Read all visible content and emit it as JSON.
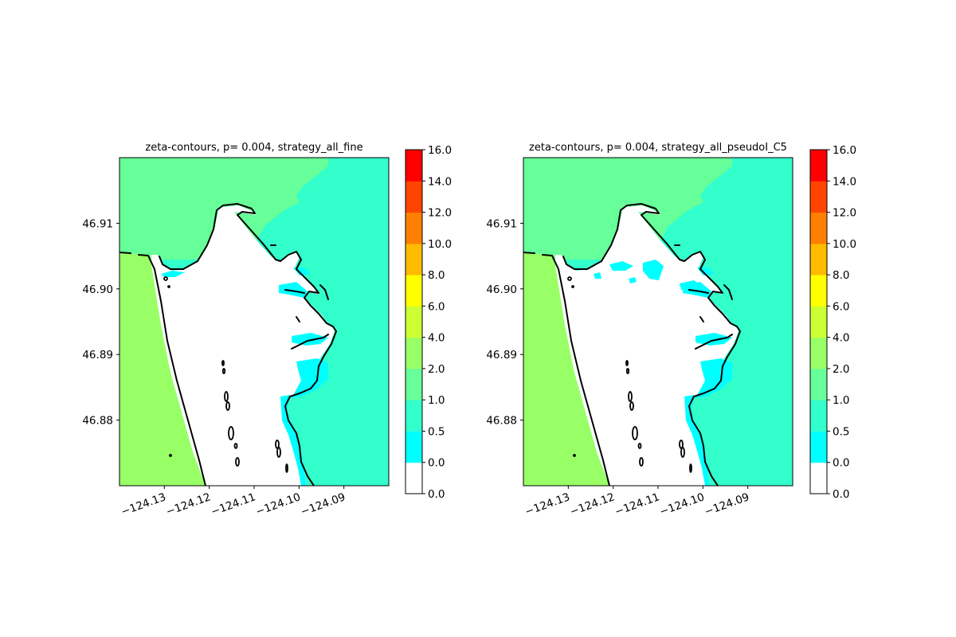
{
  "chart_data": [
    {
      "type": "heatmap",
      "title": "zeta-contours, p= 0.004, strategy_all_fine",
      "xlim": [
        -124.14,
        -124.08
      ],
      "ylim": [
        46.87,
        46.92
      ],
      "x_ticks": [
        -124.13,
        -124.12,
        -124.11,
        -124.1,
        -124.09
      ],
      "x_tick_labels": [
        "−124.13",
        "−124.12",
        "−124.11",
        "−124.10",
        "−124.09"
      ],
      "y_ticks": [
        46.88,
        46.89,
        46.9,
        46.91
      ],
      "y_tick_labels": [
        "46.88",
        "46.89",
        "46.90",
        "46.91"
      ],
      "variant": "fine"
    },
    {
      "type": "heatmap",
      "title": "zeta-contours, p= 0.004, strategy_all_pseudoI_C5",
      "xlim": [
        -124.14,
        -124.08
      ],
      "ylim": [
        46.87,
        46.92
      ],
      "x_ticks": [
        -124.13,
        -124.12,
        -124.11,
        -124.1,
        -124.09
      ],
      "x_tick_labels": [
        "−124.13",
        "−124.12",
        "−124.11",
        "−124.10",
        "−124.09"
      ],
      "y_ticks": [
        46.88,
        46.89,
        46.9,
        46.91
      ],
      "y_tick_labels": [
        "46.88",
        "46.89",
        "46.90",
        "46.91"
      ],
      "variant": "pseudo"
    }
  ],
  "colorbar": {
    "levels": [
      "0.0",
      "0.0",
      "0.5",
      "1.0",
      "2.0",
      "4.0",
      "6.0",
      "8.0",
      "10.0",
      "12.0",
      "14.0",
      "16.0"
    ],
    "colors": [
      "#ffffff",
      "#00ffff",
      "#33ffcc",
      "#66ff99",
      "#99ff66",
      "#ccff33",
      "#ffff00",
      "#ffbb00",
      "#ff8000",
      "#ff4400",
      "#ff0000"
    ]
  },
  "palette": {
    "ocean": "#99ff66",
    "inner": "#33ffcc",
    "north": "#66ff99",
    "shallow": "#00ffff",
    "land": "#ffffff",
    "coast": "#000000"
  }
}
